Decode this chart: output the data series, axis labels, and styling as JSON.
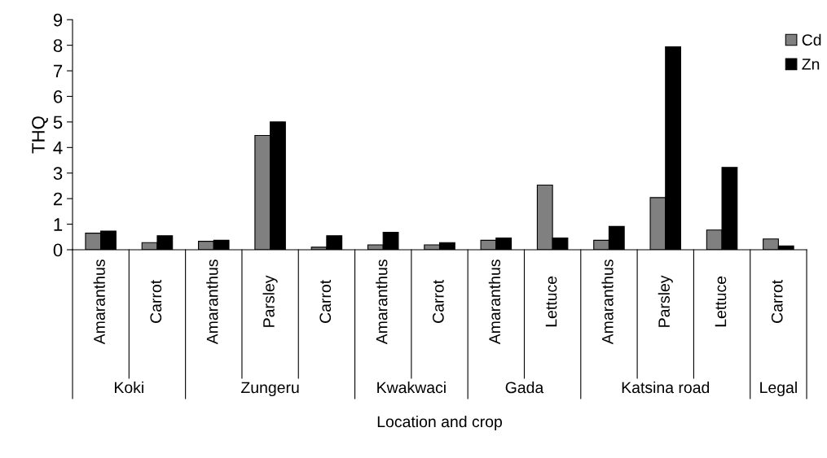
{
  "chart_data": {
    "type": "bar",
    "categories": [
      "Amaranthus",
      "Carrot",
      "Amaranthus",
      "Parsley",
      "Carrot",
      "Amaranthus",
      "Carrot",
      "Amaranthus",
      "Lettuce",
      "Amaranthus",
      "Parsley",
      "Lettuce",
      "Carrot"
    ],
    "series": [
      {
        "name": "Cd",
        "color": "#808080",
        "values": [
          0.65,
          0.28,
          0.33,
          4.47,
          0.1,
          0.19,
          0.19,
          0.37,
          2.53,
          0.37,
          2.04,
          0.77,
          0.42
        ]
      },
      {
        "name": "Zn",
        "color": "#000000",
        "values": [
          0.73,
          0.55,
          0.37,
          5.0,
          0.55,
          0.68,
          0.28,
          0.46,
          0.46,
          0.91,
          7.94,
          3.22,
          0.15
        ]
      }
    ],
    "ylim": [
      0,
      9
    ],
    "yticks": [
      0,
      1,
      2,
      3,
      4,
      5,
      6,
      7,
      8,
      9
    ],
    "xlabel": "Location and crop",
    "ylabel": "THQ",
    "annotations": [
      "Koki",
      "Zungeru",
      "Kwakwaci",
      "Gada",
      "Katsina road",
      "Legal"
    ],
    "legend": "top right",
    "grid": false
  }
}
